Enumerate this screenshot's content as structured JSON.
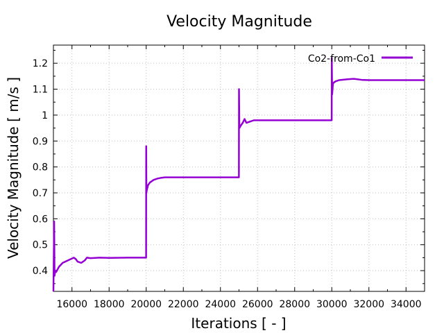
{
  "chart_data": {
    "type": "line",
    "title": "Velocity Magnitude",
    "xlabel": "Iterations [ - ]",
    "ylabel": "Velocity Magnitude [ m/s ]",
    "xlim": [
      15000,
      35000
    ],
    "ylim": [
      0.32,
      1.27
    ],
    "xticks": [
      16000,
      18000,
      20000,
      22000,
      24000,
      26000,
      28000,
      30000,
      32000,
      34000
    ],
    "xtick_labels": [
      "16000",
      "18000",
      "20000",
      "22000",
      "24000",
      "26000",
      "28000",
      "30000",
      "32000",
      "34000"
    ],
    "yticks": [
      0.4,
      0.5,
      0.6,
      0.7,
      0.8,
      0.9,
      1.0,
      1.1,
      1.2
    ],
    "ytick_labels": [
      "0.4",
      "0.5",
      "0.6",
      "0.7",
      "0.8",
      "0.9",
      "1",
      "1.1",
      "1.2"
    ],
    "grid": true,
    "legend_position": "top-right",
    "colors": {
      "series": "#9400d3",
      "grid": "#c0c0c0",
      "axis": "#000000"
    },
    "series": [
      {
        "name": "Co2-from-Co1",
        "x": [
          15000,
          15040,
          15060,
          15100,
          15150,
          15300,
          15500,
          15800,
          16100,
          16200,
          16300,
          16500,
          16700,
          16800,
          17000,
          17500,
          18000,
          19000,
          19995,
          20000,
          20010,
          20030,
          20100,
          20200,
          20400,
          20600,
          20800,
          21000,
          22000,
          24000,
          24995,
          25000,
          25020,
          25100,
          25200,
          25300,
          25400,
          25600,
          25800,
          26000,
          28000,
          29995,
          30000,
          30020,
          30060,
          30100,
          30200,
          30400,
          30800,
          31200,
          31600,
          32000,
          33000,
          34000,
          35000
        ],
        "y": [
          0.32,
          0.59,
          0.38,
          0.4,
          0.395,
          0.415,
          0.43,
          0.44,
          0.45,
          0.445,
          0.435,
          0.43,
          0.44,
          0.45,
          0.448,
          0.45,
          0.449,
          0.45,
          0.45,
          0.88,
          0.7,
          0.71,
          0.73,
          0.74,
          0.75,
          0.755,
          0.758,
          0.76,
          0.76,
          0.76,
          0.76,
          1.1,
          0.95,
          0.96,
          0.97,
          0.985,
          0.97,
          0.975,
          0.98,
          0.98,
          0.98,
          0.98,
          1.22,
          1.08,
          1.12,
          1.125,
          1.13,
          1.135,
          1.138,
          1.14,
          1.136,
          1.135,
          1.135,
          1.135,
          1.135
        ]
      }
    ]
  }
}
